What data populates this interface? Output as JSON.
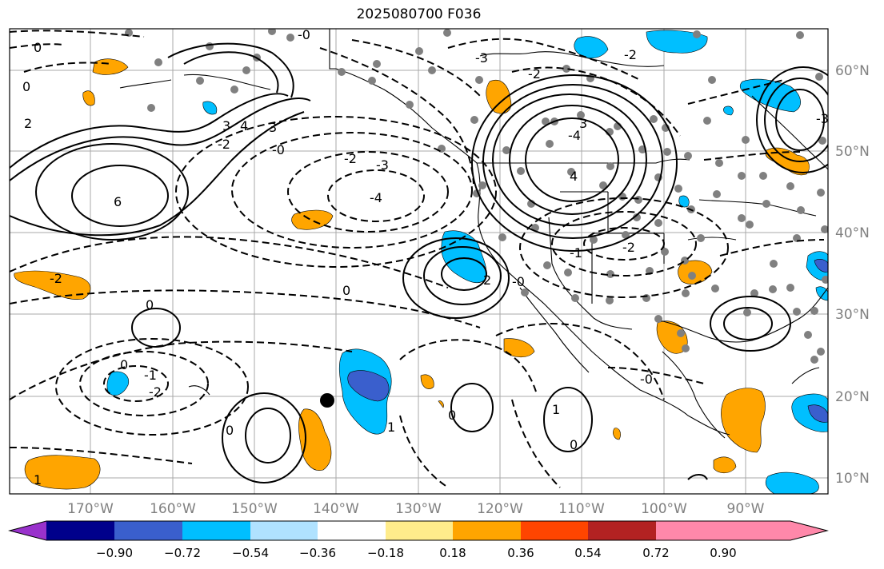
{
  "title": "2025080700 F036",
  "map": {
    "lon_labels": [
      "170°W",
      "160°W",
      "150°W",
      "140°W",
      "130°W",
      "120°W",
      "110°W",
      "100°W",
      "90°W"
    ],
    "lat_labels": [
      "60°N",
      "50°N",
      "40°N",
      "30°N",
      "20°N",
      "10°N"
    ],
    "contour_labels": [
      "0",
      "0",
      "2",
      "3",
      "4",
      "-2",
      "-4",
      "3",
      "-2",
      "-3",
      "-0",
      "-4",
      "0",
      "-2",
      "6",
      "3",
      "-0",
      "-2",
      "-0",
      "0",
      "-1",
      "2",
      "-3",
      "4",
      "-3",
      "-2",
      "-2",
      "0",
      "1",
      "1",
      "0",
      "0",
      "-0",
      "-1",
      "-2",
      "0",
      "1"
    ]
  },
  "colorbar": {
    "tick_labels": [
      "−0.90",
      "−0.72",
      "−0.54",
      "−0.36",
      "−0.18",
      "0.18",
      "0.36",
      "0.54",
      "0.72",
      "0.90"
    ],
    "colors": [
      "#9932cc",
      "#00008b",
      "#3a5fcd",
      "#00bfff",
      "#b0e2ff",
      "#ffffff",
      "#ffec8b",
      "#ffa500",
      "#ff4500",
      "#b22222",
      "#ff88aa"
    ]
  },
  "colors": {
    "positive_fill": "#ffa500",
    "negative_fill": "#00bfff",
    "strong_negative_fill": "#3a5fcd",
    "station_dot": "#808080"
  }
}
